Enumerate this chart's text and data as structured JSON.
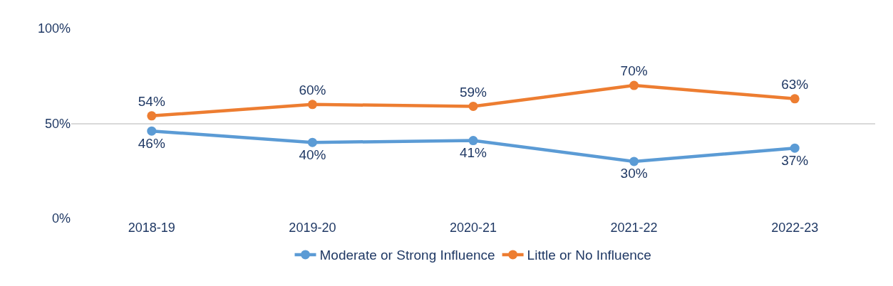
{
  "chart_data": {
    "type": "line",
    "categories": [
      "2018-19",
      "2019-20",
      "2020-21",
      "2021-22",
      "2022-23"
    ],
    "series": [
      {
        "name": "Moderate or Strong Influence",
        "color": "#5b9bd5",
        "values": [
          46,
          40,
          41,
          30,
          37
        ],
        "value_labels": [
          "46%",
          "40%",
          "41%",
          "30%",
          "37%"
        ]
      },
      {
        "name": "Little or No Influence",
        "color": "#ed7d31",
        "values": [
          54,
          60,
          59,
          70,
          63
        ],
        "value_labels": [
          "54%",
          "60%",
          "59%",
          "70%",
          "63%"
        ]
      }
    ],
    "ylim": [
      0,
      100
    ],
    "yticks": [
      {
        "value": 0,
        "label": "0%"
      },
      {
        "value": 50,
        "label": "50%"
      },
      {
        "value": 100,
        "label": "100%"
      }
    ],
    "grid": "y",
    "legend": "bottom",
    "marker": "circle",
    "line_style": "solid"
  }
}
